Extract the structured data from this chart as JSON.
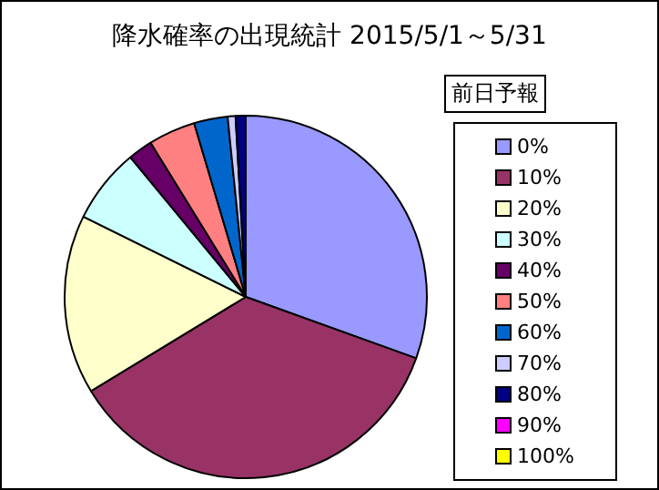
{
  "chart_data": {
    "type": "pie",
    "title": "降水確率の出現統計 2015/5/1～5/31",
    "legend_title": "前日予報",
    "legend": "right",
    "categories": [
      "0%",
      "10%",
      "20%",
      "30%",
      "40%",
      "50%",
      "60%",
      "70%",
      "80%",
      "90%",
      "100%"
    ],
    "values": [
      30.5,
      35.8,
      16.0,
      6.7,
      2.2,
      4.2,
      3.0,
      0.7,
      0.9,
      0,
      0
    ],
    "colors": [
      "#9999ff",
      "#993366",
      "#ffffcc",
      "#ccffff",
      "#660066",
      "#ff8080",
      "#0066cc",
      "#ccccff",
      "#000080",
      "#ff00ff",
      "#ffff00"
    ]
  }
}
